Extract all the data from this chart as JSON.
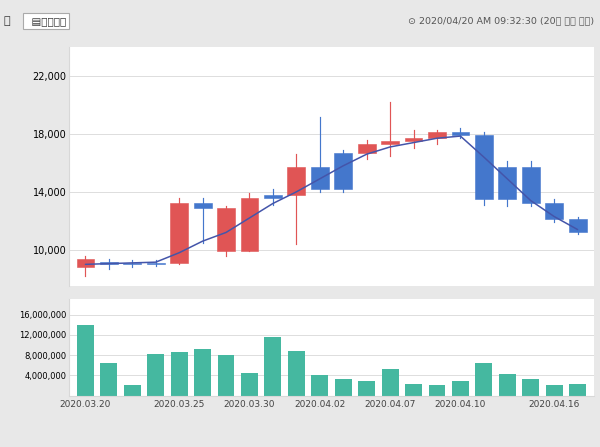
{
  "title_left": "업  ▤바로가기",
  "title_right": "⊙ 2020/04/20 AM 09:32:30 (20분 지연 정보)",
  "bg_color": "#e8e8e8",
  "chart_bg": "#ffffff",
  "candles": [
    {
      "open": 9400,
      "high": 9600,
      "low": 8200,
      "close": 8800,
      "color": "red"
    },
    {
      "open": 9100,
      "high": 9400,
      "low": 8700,
      "close": 9050,
      "color": "blue"
    },
    {
      "open": 9050,
      "high": 9300,
      "low": 8850,
      "close": 9000,
      "color": "blue"
    },
    {
      "open": 9000,
      "high": 9300,
      "low": 8900,
      "close": 9100,
      "color": "blue"
    },
    {
      "open": 9100,
      "high": 13600,
      "low": 9000,
      "close": 13200,
      "color": "red"
    },
    {
      "open": 13200,
      "high": 13600,
      "low": 10500,
      "close": 12900,
      "color": "blue"
    },
    {
      "open": 12900,
      "high": 13000,
      "low": 9600,
      "close": 9900,
      "color": "red"
    },
    {
      "open": 9900,
      "high": 13900,
      "low": 9900,
      "close": 13600,
      "color": "red"
    },
    {
      "open": 13600,
      "high": 14200,
      "low": 13100,
      "close": 13800,
      "color": "blue"
    },
    {
      "open": 13800,
      "high": 16600,
      "low": 10400,
      "close": 15700,
      "color": "red"
    },
    {
      "open": 15700,
      "high": 19200,
      "low": 14000,
      "close": 14200,
      "color": "blue"
    },
    {
      "open": 14200,
      "high": 16900,
      "low": 14000,
      "close": 16700,
      "color": "blue"
    },
    {
      "open": 16700,
      "high": 17600,
      "low": 16300,
      "close": 17300,
      "color": "red"
    },
    {
      "open": 17300,
      "high": 20200,
      "low": 16500,
      "close": 17500,
      "color": "red"
    },
    {
      "open": 17500,
      "high": 18300,
      "low": 17000,
      "close": 17700,
      "color": "red"
    },
    {
      "open": 17700,
      "high": 18300,
      "low": 17300,
      "close": 18100,
      "color": "red"
    },
    {
      "open": 18100,
      "high": 18400,
      "low": 17700,
      "close": 17900,
      "color": "blue"
    },
    {
      "open": 17900,
      "high": 18100,
      "low": 13100,
      "close": 13500,
      "color": "blue"
    },
    {
      "open": 13500,
      "high": 16100,
      "low": 13000,
      "close": 15700,
      "color": "blue"
    },
    {
      "open": 15700,
      "high": 16100,
      "low": 13000,
      "close": 13200,
      "color": "blue"
    },
    {
      "open": 13200,
      "high": 13500,
      "low": 11900,
      "close": 12100,
      "color": "blue"
    },
    {
      "open": 12100,
      "high": 12300,
      "low": 11100,
      "close": 11200,
      "color": "blue"
    }
  ],
  "ma_line": [
    9000,
    9050,
    9100,
    9150,
    9800,
    10600,
    11200,
    12200,
    13200,
    14000,
    14900,
    15800,
    16600,
    17100,
    17400,
    17700,
    17850,
    16400,
    14900,
    13400,
    12300,
    11400
  ],
  "volumes": [
    14000000,
    6500000,
    2000000,
    8300000,
    8700000,
    9300000,
    8000000,
    4400000,
    11500000,
    8900000,
    4000000,
    3200000,
    2900000,
    5300000,
    2200000,
    2100000,
    2900000,
    6400000,
    4300000,
    3300000,
    2000000,
    2200000
  ],
  "price_yticks": [
    10000,
    14000,
    18000,
    22000
  ],
  "vol_yticks": [
    4000000,
    8000000,
    12000000,
    16000000
  ],
  "xtick_labels": [
    "2020.03.20",
    "2020.03.25",
    "2020.03.30",
    "2020.04.02",
    "2020.04.07",
    "2020.04.10",
    "2020.04.16"
  ],
  "xtick_positions": [
    0,
    4,
    7,
    10,
    13,
    16,
    20
  ],
  "candle_red": "#e05555",
  "candle_blue": "#4477cc",
  "vol_color": "#45b8a0",
  "ma_color": "#4455aa",
  "grid_color": "#d8d8d8"
}
